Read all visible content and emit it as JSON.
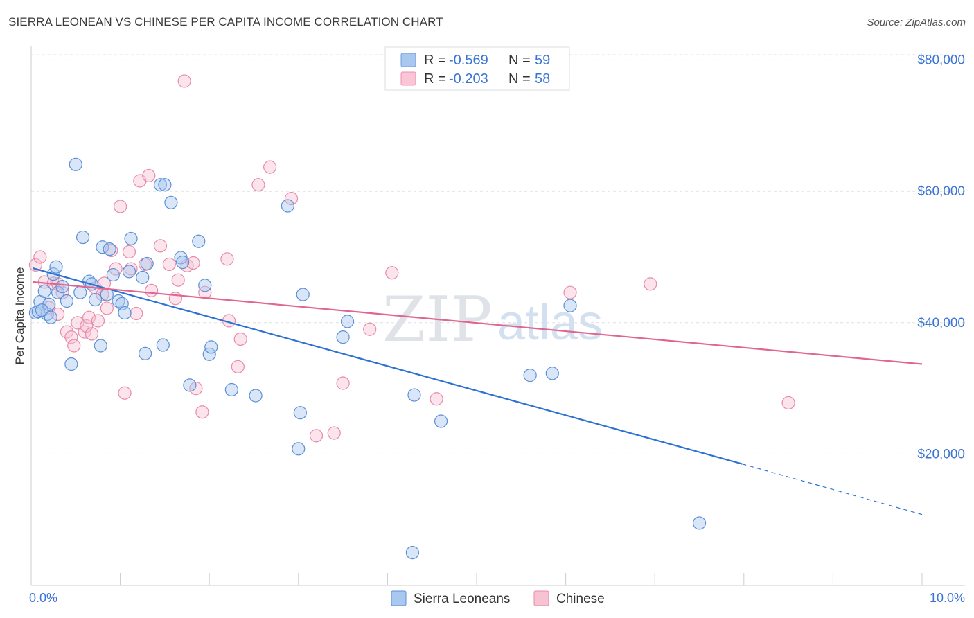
{
  "title": "SIERRA LEONEAN VS CHINESE PER CAPITA INCOME CORRELATION CHART",
  "source": "Source: ZipAtlas.com",
  "watermark": {
    "zip": "ZIP",
    "atlas": "atlas"
  },
  "stats": [
    {
      "r_label": "R = ",
      "r_value": "-0.569",
      "n_label": "N = ",
      "n_value": "59",
      "color": "#a8c8f0",
      "stroke": "#6a9fe0"
    },
    {
      "r_label": "R = ",
      "r_value": "-0.203",
      "n_label": "N = ",
      "n_value": "58",
      "color": "#f9c6d6",
      "stroke": "#ef8fb0"
    }
  ],
  "colors": {
    "blue_fill": "#a8c8f0",
    "blue_stroke": "#5b8fd6",
    "blue_line": "#2d72d2",
    "pink_fill": "#f7c3d3",
    "pink_stroke": "#e88aaa",
    "pink_line": "#e06590",
    "grid": "#dde1e6",
    "accent": "#3b74d4"
  },
  "chart_data": {
    "type": "scatter",
    "title": "SIERRA LEONEAN VS CHINESE PER CAPITA INCOME CORRELATION CHART",
    "xlabel": "",
    "ylabel": "Per Capita Income",
    "xlim": [
      0,
      10
    ],
    "ylim": [
      0,
      80800
    ],
    "x_ticks": [
      "0.0%",
      "10.0%"
    ],
    "y_ticks": [
      {
        "value": 20000,
        "label": "$20,000"
      },
      {
        "value": 40000,
        "label": "$40,000"
      },
      {
        "value": 60000,
        "label": "$60,000"
      },
      {
        "value": 80000,
        "label": "$80,000"
      }
    ],
    "grid": true,
    "legend_position": "bottom-center",
    "series": [
      {
        "name": "Sierra Leoneans",
        "color": "#a8c8f0",
        "trend": {
          "x1": 0.02,
          "y1": 48300,
          "x2": 7.98,
          "y2": 18500,
          "dashed_to_x": 10.0,
          "dashed_to_y": 10800
        },
        "points": [
          [
            0.05,
            41500
          ],
          [
            0.1,
            43200
          ],
          [
            0.15,
            44800
          ],
          [
            0.18,
            41300
          ],
          [
            0.2,
            42800
          ],
          [
            0.25,
            47400
          ],
          [
            0.28,
            48500
          ],
          [
            0.3,
            44600
          ],
          [
            0.35,
            45500
          ],
          [
            0.4,
            43300
          ],
          [
            0.45,
            33700
          ],
          [
            0.5,
            64100
          ],
          [
            0.55,
            44600
          ],
          [
            0.58,
            53000
          ],
          [
            0.65,
            46300
          ],
          [
            0.68,
            45900
          ],
          [
            0.72,
            43500
          ],
          [
            0.78,
            36500
          ],
          [
            0.8,
            51500
          ],
          [
            0.85,
            44300
          ],
          [
            0.88,
            51200
          ],
          [
            0.92,
            47300
          ],
          [
            0.98,
            43300
          ],
          [
            1.02,
            42900
          ],
          [
            1.05,
            41500
          ],
          [
            1.1,
            47800
          ],
          [
            1.12,
            52800
          ],
          [
            1.25,
            46900
          ],
          [
            1.3,
            49000
          ],
          [
            1.28,
            35300
          ],
          [
            1.45,
            61000
          ],
          [
            1.48,
            36600
          ],
          [
            1.5,
            61000
          ],
          [
            1.57,
            58300
          ],
          [
            1.68,
            49900
          ],
          [
            1.7,
            49200
          ],
          [
            1.78,
            30500
          ],
          [
            1.88,
            52400
          ],
          [
            1.95,
            45700
          ],
          [
            2.0,
            35200
          ],
          [
            2.02,
            36300
          ],
          [
            2.25,
            29800
          ],
          [
            2.52,
            28900
          ],
          [
            2.88,
            57800
          ],
          [
            3.0,
            20800
          ],
          [
            3.02,
            26300
          ],
          [
            3.05,
            44300
          ],
          [
            3.5,
            37800
          ],
          [
            3.55,
            40200
          ],
          [
            4.3,
            29000
          ],
          [
            4.28,
            5000
          ],
          [
            4.6,
            25000
          ],
          [
            5.6,
            32000
          ],
          [
            5.85,
            32300
          ],
          [
            6.05,
            42600
          ],
          [
            7.5,
            9500
          ],
          [
            0.08,
            41700
          ],
          [
            0.12,
            41900
          ],
          [
            0.22,
            40800
          ]
        ]
      },
      {
        "name": "Chinese",
        "color": "#f7c3d3",
        "trend": {
          "x1": 0.02,
          "y1": 46200,
          "x2": 10.0,
          "y2": 33700
        },
        "points": [
          [
            0.05,
            48800
          ],
          [
            0.1,
            50000
          ],
          [
            0.15,
            46200
          ],
          [
            0.2,
            42300
          ],
          [
            0.25,
            46000
          ],
          [
            0.3,
            41300
          ],
          [
            0.35,
            44600
          ],
          [
            0.4,
            38600
          ],
          [
            0.45,
            37800
          ],
          [
            0.48,
            36500
          ],
          [
            0.52,
            40000
          ],
          [
            0.6,
            38600
          ],
          [
            0.62,
            39500
          ],
          [
            0.65,
            40800
          ],
          [
            0.68,
            38300
          ],
          [
            0.72,
            45300
          ],
          [
            0.75,
            40300
          ],
          [
            0.8,
            44300
          ],
          [
            0.82,
            46000
          ],
          [
            0.85,
            42200
          ],
          [
            0.9,
            51000
          ],
          [
            0.95,
            48200
          ],
          [
            1.0,
            57700
          ],
          [
            1.05,
            29300
          ],
          [
            1.1,
            50800
          ],
          [
            1.12,
            48200
          ],
          [
            1.18,
            41400
          ],
          [
            1.22,
            61600
          ],
          [
            1.28,
            48900
          ],
          [
            1.32,
            62400
          ],
          [
            1.35,
            44900
          ],
          [
            1.45,
            51700
          ],
          [
            1.55,
            48900
          ],
          [
            1.62,
            43700
          ],
          [
            1.65,
            46500
          ],
          [
            1.75,
            48700
          ],
          [
            1.82,
            49100
          ],
          [
            1.85,
            30000
          ],
          [
            1.92,
            26400
          ],
          [
            1.95,
            44600
          ],
          [
            2.2,
            49700
          ],
          [
            2.22,
            40300
          ],
          [
            2.35,
            37500
          ],
          [
            2.32,
            33300
          ],
          [
            2.55,
            61000
          ],
          [
            2.68,
            63700
          ],
          [
            2.92,
            58900
          ],
          [
            3.2,
            22800
          ],
          [
            3.4,
            23200
          ],
          [
            3.5,
            30800
          ],
          [
            3.8,
            39000
          ],
          [
            4.05,
            47600
          ],
          [
            4.55,
            28400
          ],
          [
            6.05,
            44600
          ],
          [
            6.95,
            45900
          ],
          [
            8.5,
            27800
          ],
          [
            1.72,
            76800
          ],
          [
            0.3,
            45900
          ]
        ]
      }
    ]
  },
  "legend": {
    "items": [
      "Sierra Leoneans",
      "Chinese"
    ]
  }
}
